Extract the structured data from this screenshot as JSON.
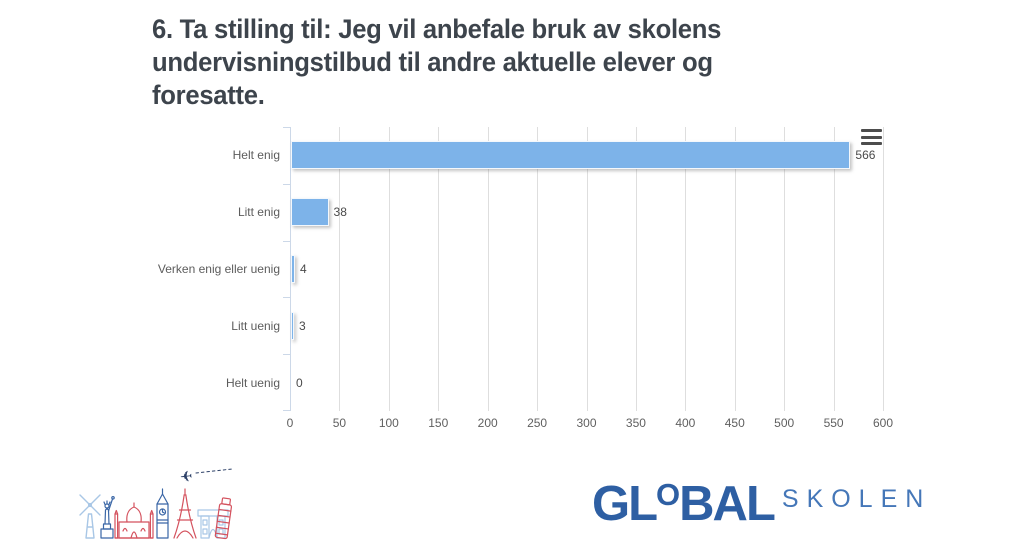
{
  "title": {
    "full": "6. Ta stilling til: Jeg vil anbefale bruk av skolens undervisningstilbud til andre aktuelle elever og foresatte.",
    "lines": [
      "6. Ta stilling til: Jeg vil anbefale bruk av skolens",
      "undervisningstilbud til andre aktuelle elever og",
      "foresatte."
    ]
  },
  "chart_data": {
    "type": "bar",
    "orientation": "horizontal",
    "title": "6. Ta stilling til: Jeg vil anbefale bruk av skolens undervisningstilbud til andre aktuelle elever og foresatte.",
    "categories": [
      "Helt enig",
      "Litt enig",
      "Verken enig eller uenig",
      "Litt uenig",
      "Helt uenig"
    ],
    "values": [
      566,
      38,
      4,
      3,
      0
    ],
    "data_labels": [
      "566",
      "38",
      "4",
      "3",
      "0"
    ],
    "xlabel": "",
    "ylabel": "",
    "xlim": [
      0,
      600
    ],
    "x_ticks": [
      0,
      50,
      100,
      150,
      200,
      250,
      300,
      350,
      400,
      450,
      500,
      550,
      600
    ],
    "grid": true,
    "legend": false,
    "bar_color": "#7db3e9",
    "grid_color": "#dedede",
    "axis_color": "#ccd8e8"
  },
  "chart_menu": {
    "icon": "hamburger-menu-icon"
  },
  "footer": {
    "logo": {
      "part_gl": "GL",
      "part_o": "O",
      "part_bal": "BAL",
      "word_secondary": "SKOLEN",
      "primary_color": "#2e5fa3",
      "secondary_color": "#4577b8"
    },
    "illustration": "world-landmarks-line-art"
  }
}
